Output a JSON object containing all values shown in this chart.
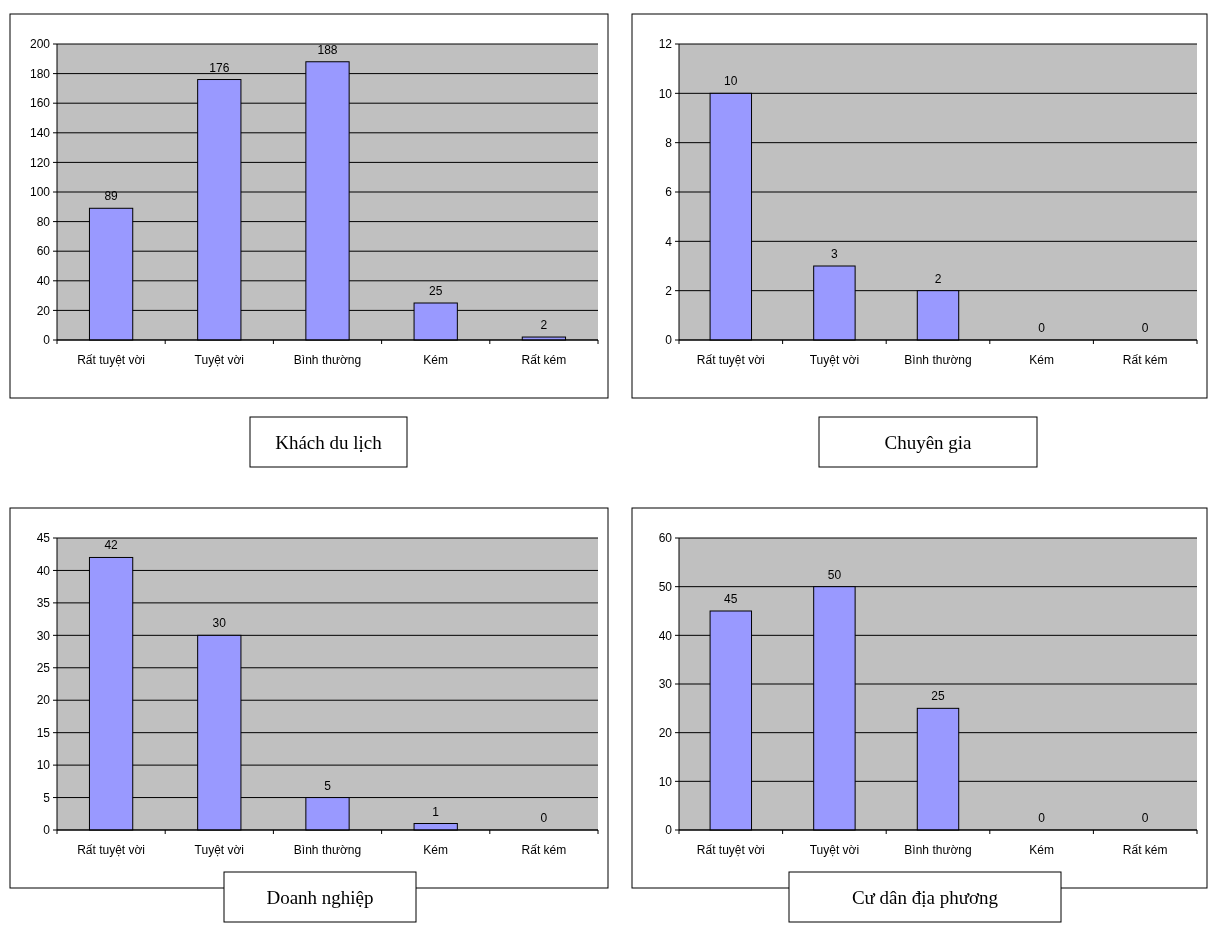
{
  "chart_data": [
    {
      "type": "bar",
      "title": "Khách du lịch",
      "categories": [
        "Rất tuyệt vời",
        "Tuyệt vời",
        "Bình thường",
        "Kém",
        "Rất kém"
      ],
      "values": [
        89,
        176,
        188,
        25,
        2
      ],
      "color": "#9999ff",
      "ylim": [
        0,
        200
      ],
      "yticks": [
        0,
        20,
        40,
        60,
        80,
        100,
        120,
        140,
        160,
        180,
        200
      ],
      "grid": "y",
      "data_labels": true
    },
    {
      "type": "bar",
      "title": "Chuyên gia",
      "categories": [
        "Rất tuyệt vời",
        "Tuyệt vời",
        "Bình thường",
        "Kém",
        "Rất kém"
      ],
      "values": [
        10,
        3,
        2,
        0,
        0
      ],
      "color": "#9999ff",
      "ylim": [
        0,
        12
      ],
      "yticks": [
        0,
        2,
        4,
        6,
        8,
        10,
        12
      ],
      "grid": "y",
      "data_labels": true
    },
    {
      "type": "bar",
      "title": "Doanh nghiệp",
      "categories": [
        "Rất tuyệt vời",
        "Tuyệt vời",
        "Bình thường",
        "Kém",
        "Rất kém"
      ],
      "values": [
        42,
        30,
        5,
        1,
        0
      ],
      "color": "#9999ff",
      "ylim": [
        0,
        45
      ],
      "yticks": [
        0,
        5,
        10,
        15,
        20,
        25,
        30,
        35,
        40,
        45
      ],
      "grid": "y",
      "data_labels": true
    },
    {
      "type": "bar",
      "title": "Cư dân địa phương",
      "categories": [
        "Rất tuyệt vời",
        "Tuyệt vời",
        "Bình thường",
        "Kém",
        "Rất kém"
      ],
      "values": [
        45,
        50,
        25,
        0,
        0
      ],
      "color": "#9999ff",
      "ylim": [
        0,
        60
      ],
      "yticks": [
        0,
        10,
        20,
        30,
        40,
        50,
        60
      ],
      "grid": "y",
      "data_labels": true
    }
  ]
}
